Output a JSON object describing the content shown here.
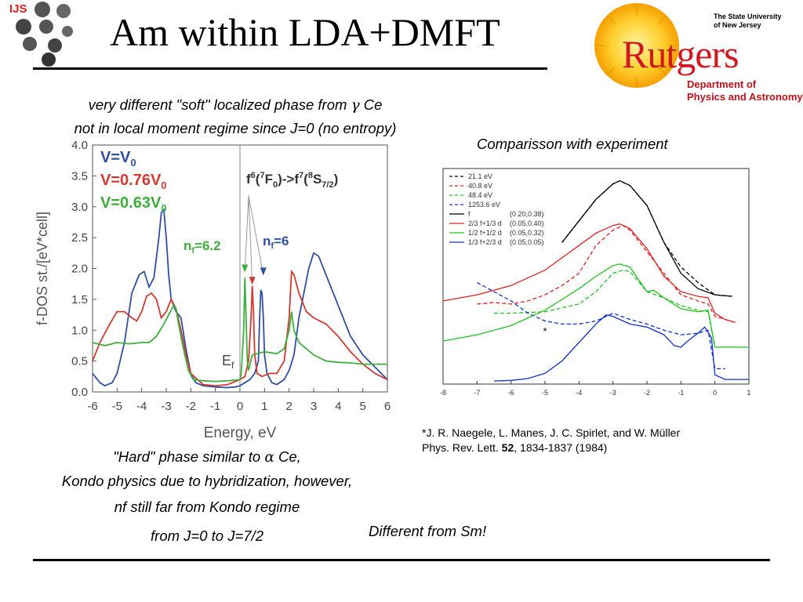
{
  "header": {
    "logo_text": "IJS",
    "title": "Am within LDA+DMFT"
  },
  "rutgers": {
    "university_line1": "The State University",
    "university_line2": "of New Jersey",
    "wordmark": "Rutgers",
    "dept_line1": "Department of",
    "dept_line2": "Physics and Astronomy"
  },
  "text": {
    "line1_pre": "very different \"soft\" localized phase from ",
    "gamma": "γ",
    "line1_post": " Ce",
    "line2": "not in local moment regime since J=0 (no entropy)",
    "comparison": "Comparisson with experiment",
    "hard_pre": "\"Hard\" phase similar to ",
    "alpha": "α",
    "hard_post": " Ce,",
    "kondo1": "Kondo physics due to hybridization, however,",
    "kondo2": "nf still far from Kondo regime",
    "fromj": "from J=0  to  J=7/2",
    "different": "Different from Sm!",
    "ref_line1": "*J. R. Naegele, L. Manes, J. C. Spirlet, and W. Müller",
    "ref_journal": "Phys. Rev. Lett. ",
    "ref_vol": "52",
    "ref_rest": ", 1834-1837 (1984)"
  },
  "colors": {
    "blue": "#2f4fa0",
    "red": "#d03a30",
    "green": "#3fae3f",
    "rutgers_red": "#d2181f",
    "ijs_red": "#e0201b"
  },
  "chart_data": [
    {
      "type": "line",
      "title": "",
      "xlabel": "Energy, eV",
      "ylabel": "f-DOS st./[eV*cell]",
      "xlim": [
        -6,
        6
      ],
      "ylim": [
        0,
        4
      ],
      "xticks": [
        -6,
        -5,
        -4,
        -3,
        -2,
        -1,
        0,
        1,
        2,
        3,
        4,
        5,
        6
      ],
      "yticks": [
        "0.0",
        "0.5",
        "1.0",
        "1.5",
        "2.0",
        "2.5",
        "3.0",
        "3.5",
        "4.0"
      ],
      "legend": [
        "V=V0",
        "V=0.76V0",
        "V=0.63V0"
      ],
      "annotations": [
        "f6(7F0)->f7(8S7/2)",
        "nf=6.2",
        "nf=6",
        "Ef"
      ],
      "series": [
        {
          "name": "V=V0",
          "color": "#2f4fa0",
          "x": [
            -6,
            -5.7,
            -5.5,
            -5.2,
            -5,
            -4.7,
            -4.4,
            -4.1,
            -3.9,
            -3.7,
            -3.5,
            -3.3,
            -3.2,
            -3.1,
            -3.0,
            -2.9,
            -2.8,
            -2.6,
            -2.4,
            -2.2,
            -2.0,
            -1.8,
            -1.5,
            -1,
            -0.5,
            -0.2,
            0,
            0.2,
            0.4,
            0.6,
            0.75,
            0.8,
            0.85,
            0.9,
            0.95,
            1.0,
            1.1,
            1.3,
            1.5,
            1.8,
            2.0,
            2.2,
            2.4,
            2.6,
            2.8,
            3.0,
            3.2,
            3.5,
            4,
            4.5,
            5,
            5.5,
            6
          ],
          "y": [
            0.3,
            0.15,
            0.1,
            0.15,
            0.3,
            0.8,
            1.6,
            1.9,
            1.95,
            1.7,
            1.85,
            2.5,
            2.9,
            2.95,
            2.5,
            1.9,
            1.5,
            1.3,
            1.2,
            0.7,
            0.3,
            0.15,
            0.1,
            0.08,
            0.07,
            0.08,
            0.1,
            0.15,
            0.2,
            0.3,
            0.5,
            1.2,
            1.65,
            1.6,
            1.2,
            0.6,
            0.3,
            0.15,
            0.12,
            0.2,
            0.35,
            0.6,
            1.2,
            1.6,
            2.0,
            2.25,
            2.2,
            1.9,
            1.4,
            0.9,
            0.6,
            0.4,
            0.2
          ]
        },
        {
          "name": "V=0.76V0",
          "color": "#d03a30",
          "x": [
            -6,
            -5.7,
            -5.3,
            -5,
            -4.7,
            -4.4,
            -4.2,
            -4.0,
            -3.8,
            -3.6,
            -3.4,
            -3.2,
            -3.0,
            -2.8,
            -2.6,
            -2.4,
            -2.2,
            -2.0,
            -1.5,
            -1,
            -0.5,
            0,
            0.2,
            0.35,
            0.45,
            0.5,
            0.55,
            0.6,
            0.7,
            0.9,
            1.2,
            1.5,
            1.8,
            2.0,
            2.1,
            2.2,
            2.4,
            2.7,
            3,
            3.5,
            4,
            4.5,
            5,
            5.5,
            6
          ],
          "y": [
            0.5,
            0.8,
            1.1,
            1.3,
            1.3,
            1.2,
            1.15,
            1.3,
            1.55,
            1.6,
            1.5,
            1.2,
            1.3,
            1.5,
            1.35,
            1.0,
            0.6,
            0.3,
            0.12,
            0.1,
            0.12,
            0.2,
            0.25,
            0.5,
            1.2,
            1.72,
            1.3,
            0.6,
            0.3,
            0.25,
            0.3,
            0.3,
            0.5,
            1.2,
            1.95,
            1.9,
            1.6,
            1.3,
            1.2,
            1.1,
            0.9,
            0.65,
            0.45,
            0.3,
            0.2
          ]
        },
        {
          "name": "V=0.63V0",
          "color": "#3fae3f",
          "x": [
            -6,
            -5.5,
            -5,
            -4.5,
            -4,
            -3.7,
            -3.4,
            -3.1,
            -2.9,
            -2.7,
            -2.6,
            -2.5,
            -2.3,
            -2.1,
            -1.9,
            -1.5,
            -1,
            -0.5,
            0,
            0.05,
            0.15,
            0.2,
            0.25,
            0.3,
            0.35,
            0.5,
            1,
            1.5,
            1.8,
            2.0,
            2.1,
            2.2,
            2.4,
            2.7,
            3,
            3.5,
            4,
            4.5,
            5,
            5.5,
            6
          ],
          "y": [
            0.8,
            0.75,
            0.8,
            0.78,
            0.8,
            0.8,
            0.9,
            1.1,
            1.25,
            1.4,
            1.35,
            1.1,
            0.7,
            0.35,
            0.2,
            0.18,
            0.17,
            0.18,
            0.2,
            0.3,
            1.0,
            1.85,
            1.2,
            0.5,
            0.35,
            0.6,
            0.65,
            0.62,
            0.7,
            1.0,
            1.3,
            1.0,
            0.8,
            0.7,
            0.6,
            0.5,
            0.48,
            0.47,
            0.45,
            0.45,
            0.45
          ]
        }
      ]
    },
    {
      "type": "line",
      "title": "",
      "xlabel": "",
      "ylabel": "",
      "xlim": [
        -8,
        1
      ],
      "xticks": [
        -8,
        -7,
        -6,
        -5,
        -4,
        -3,
        -2,
        -1,
        0,
        1
      ],
      "legend": [
        "21.1 eV",
        "40.8 eV",
        "48.4 eV",
        "1253.6 eV",
        "f",
        "2/3 f+1/3 d",
        "1/2 f+1/2 d",
        "1/3 f+2/3 d"
      ],
      "legend_params": [
        "",
        "",
        "",
        "",
        "(0.20,0.38)",
        "(0.05,0.40)",
        "(0.05,0.32)",
        "(0.05,0.05)"
      ],
      "annotations": [
        "*"
      ],
      "series": [
        {
          "name": "21.1 eV",
          "style": "dashed",
          "color": "#000000",
          "x": [
            -4.5,
            -4,
            -3.5,
            -3,
            -2.8,
            -2.5,
            -2,
            -1.5,
            -1,
            -0.5,
            0,
            0.5
          ],
          "y": [
            4.6,
            5.3,
            6.0,
            6.5,
            6.6,
            6.45,
            5.8,
            4.6,
            3.8,
            3.3,
            2.9,
            2.85
          ]
        },
        {
          "name": "40.8 eV",
          "style": "dashed",
          "color": "#e02020",
          "x": [
            -7,
            -6.5,
            -6,
            -5.5,
            -5,
            -4.5,
            -4,
            -3.5,
            -3,
            -2.7,
            -2.5,
            -2,
            -1.5,
            -1,
            -0.5,
            -0.2,
            0,
            0.3,
            0.6
          ],
          "y": [
            2.6,
            2.65,
            2.6,
            2.7,
            2.9,
            3.2,
            3.6,
            4.5,
            5.0,
            5.15,
            5.0,
            4.3,
            3.6,
            2.9,
            2.7,
            2.6,
            2.2,
            2.1,
            2.0
          ]
        },
        {
          "name": "48.4 eV",
          "style": "dashed",
          "color": "#20c020",
          "x": [
            -6.5,
            -6,
            -5,
            -4,
            -3.5,
            -3,
            -2.7,
            -2.5,
            -2,
            -1.5,
            -1,
            -0.5,
            -0.2,
            0,
            0.5
          ],
          "y": [
            2.3,
            2.3,
            2.35,
            2.6,
            3.0,
            3.6,
            3.7,
            3.65,
            3.0,
            2.8,
            2.55,
            2.4,
            2.35,
            1.2,
            1.2
          ]
        },
        {
          "name": "1253.6 eV",
          "style": "dashed",
          "color": "#1030d0",
          "x": [
            -7,
            -6.5,
            -6,
            -5.5,
            -5,
            -4.5,
            -4,
            -3.5,
            -3,
            -2.5,
            -2,
            -1.5,
            -1,
            -0.5,
            -0.2,
            0,
            0.3
          ],
          "y": [
            3.3,
            3.0,
            2.7,
            2.3,
            2.05,
            1.95,
            1.95,
            2.05,
            2.3,
            2.1,
            1.95,
            1.75,
            1.6,
            1.65,
            1.75,
            0.5,
            0.5
          ]
        },
        {
          "name": "f",
          "style": "solid",
          "color": "#000000",
          "x": [
            -4.5,
            -4,
            -3.5,
            -3,
            -2.8,
            -2.5,
            -2,
            -1.5,
            -1,
            -0.5,
            0,
            0.5
          ],
          "y": [
            4.6,
            5.3,
            6.0,
            6.5,
            6.6,
            6.45,
            5.8,
            4.6,
            3.6,
            3.1,
            2.9,
            2.85
          ]
        },
        {
          "name": "2/3 f+1/3 d",
          "style": "solid",
          "color": "#e02020",
          "x": [
            -8,
            -7,
            -6,
            -5,
            -4.5,
            -4,
            -3.5,
            -3,
            -2.8,
            -2.5,
            -2,
            -1.5,
            -1,
            -0.5,
            -0.2,
            0,
            0.3,
            0.6
          ],
          "y": [
            2.7,
            2.9,
            3.2,
            3.7,
            4.1,
            4.5,
            4.9,
            5.15,
            5.2,
            5.05,
            4.4,
            3.5,
            3.0,
            2.85,
            2.8,
            2.3,
            2.1,
            2.0
          ]
        },
        {
          "name": "1/2 f+1/2 d",
          "style": "solid",
          "color": "#20c020",
          "x": [
            -8,
            -7,
            -6,
            -5,
            -4.5,
            -4,
            -3.5,
            -3,
            -2.8,
            -2.5,
            -2,
            -1.8,
            -1.5,
            -1,
            -0.5,
            -0.2,
            0,
            0.3,
            1
          ],
          "y": [
            1.4,
            1.6,
            1.9,
            2.4,
            2.75,
            3.1,
            3.5,
            3.85,
            3.9,
            3.8,
            3.0,
            3.05,
            2.8,
            2.45,
            2.35,
            2.4,
            1.2,
            1.2,
            1.2
          ]
        },
        {
          "name": "1/3 f+2/3 d",
          "style": "solid",
          "color": "#1030d0",
          "x": [
            -6.5,
            -6,
            -5.5,
            -5,
            -4.5,
            -4,
            -3.5,
            -3.2,
            -3,
            -2.5,
            -2,
            -1.5,
            -1.2,
            -1,
            -0.8,
            -0.5,
            -0.3,
            -0.1,
            0,
            0.3,
            1
          ],
          "y": [
            0.1,
            0.12,
            0.18,
            0.35,
            0.75,
            1.35,
            1.95,
            2.25,
            2.2,
            1.95,
            1.85,
            1.6,
            1.25,
            1.2,
            1.4,
            1.65,
            1.85,
            1.5,
            0.3,
            0.15,
            0.15
          ]
        }
      ]
    }
  ]
}
